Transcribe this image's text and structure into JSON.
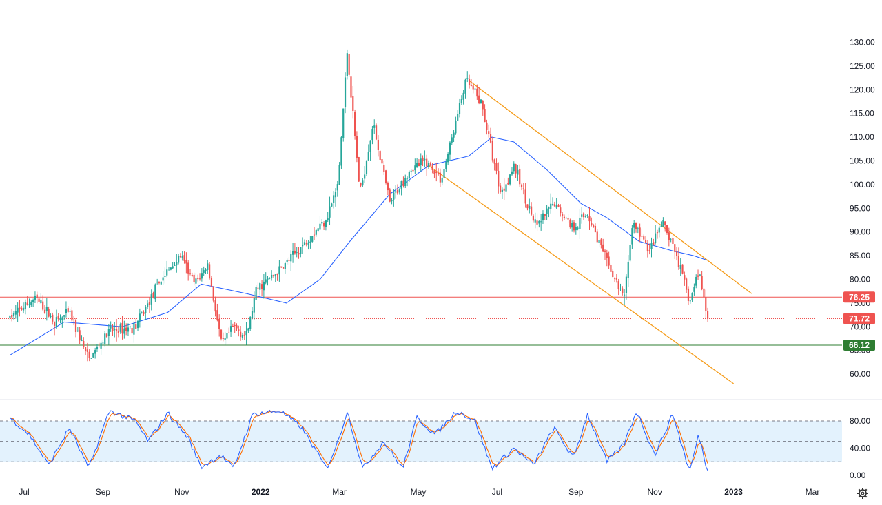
{
  "chart_data": [
    {
      "type": "candlestick",
      "title": "",
      "x_tick_labels": [
        "Jul",
        "Sep",
        "Nov",
        "2022",
        "Mar",
        "May",
        "Jul",
        "Sep",
        "Nov",
        "2023",
        "Mar"
      ],
      "y_tick_labels": [
        "130.00",
        "125.00",
        "120.00",
        "115.00",
        "110.00",
        "105.00",
        "100.00",
        "95.00",
        "90.00",
        "85.00",
        "80.00",
        "75.00",
        "70.00",
        "65.00",
        "60.00"
      ],
      "ylim": [
        57,
        132
      ],
      "grid": false,
      "colors": {
        "up": "#26a69a",
        "down": "#ef5350",
        "moving_average": "#2962ff",
        "channel": "#f59c1a",
        "resistance": "#ef5350",
        "support": "#2e7d32",
        "last_price": "#ef5350"
      },
      "price_path": [
        [
          "2021-06-20",
          72
        ],
        [
          "2021-07-10",
          76
        ],
        [
          "2021-07-25",
          71
        ],
        [
          "2021-08-05",
          73
        ],
        [
          "2021-08-20",
          63
        ],
        [
          "2021-09-05",
          69
        ],
        [
          "2021-09-25",
          70
        ],
        [
          "2021-10-15",
          80
        ],
        [
          "2021-10-30",
          85
        ],
        [
          "2021-11-10",
          79
        ],
        [
          "2021-11-20",
          83
        ],
        [
          "2021-12-01",
          66
        ],
        [
          "2021-12-10",
          70
        ],
        [
          "2021-12-20",
          68
        ],
        [
          "2021-12-28",
          78
        ],
        [
          "2022-01-15",
          82
        ],
        [
          "2022-02-01",
          87
        ],
        [
          "2022-02-20",
          93
        ],
        [
          "2022-03-01",
          100
        ],
        [
          "2022-03-08",
          128
        ],
        [
          "2022-03-18",
          98
        ],
        [
          "2022-03-28",
          113
        ],
        [
          "2022-04-10",
          96
        ],
        [
          "2022-04-25",
          103
        ],
        [
          "2022-05-08",
          105
        ],
        [
          "2022-05-20",
          101
        ],
        [
          "2022-06-08",
          122
        ],
        [
          "2022-06-20",
          117
        ],
        [
          "2022-07-05",
          98
        ],
        [
          "2022-07-15",
          104
        ],
        [
          "2022-08-01",
          91
        ],
        [
          "2022-08-15",
          96
        ],
        [
          "2022-08-30",
          91
        ],
        [
          "2022-09-10",
          94
        ],
        [
          "2022-09-26",
          83
        ],
        [
          "2022-10-08",
          76
        ],
        [
          "2022-10-15",
          92
        ],
        [
          "2022-10-28",
          86
        ],
        [
          "2022-11-07",
          92
        ],
        [
          "2022-11-18",
          85
        ],
        [
          "2022-11-28",
          75
        ],
        [
          "2022-12-05",
          82
        ],
        [
          "2022-12-12",
          71.72
        ]
      ],
      "moving_average_path": [
        [
          "2021-06-20",
          64
        ],
        [
          "2021-08-01",
          71
        ],
        [
          "2021-09-15",
          70
        ],
        [
          "2021-10-20",
          73
        ],
        [
          "2021-11-15",
          79
        ],
        [
          "2021-12-20",
          77
        ],
        [
          "2022-01-20",
          75
        ],
        [
          "2022-02-15",
          80
        ],
        [
          "2022-03-10",
          88
        ],
        [
          "2022-04-10",
          98
        ],
        [
          "2022-05-10",
          104
        ],
        [
          "2022-06-10",
          106
        ],
        [
          "2022-06-28",
          110
        ],
        [
          "2022-07-15",
          109
        ],
        [
          "2022-08-10",
          103
        ],
        [
          "2022-09-05",
          96
        ],
        [
          "2022-09-25",
          93
        ],
        [
          "2022-10-20",
          88
        ],
        [
          "2022-11-15",
          86
        ],
        [
          "2022-12-01",
          85
        ],
        [
          "2022-12-12",
          84
        ]
      ],
      "channel_upper": [
        [
          "2022-06-10",
          122
        ],
        [
          "2023-01-15",
          77
        ]
      ],
      "channel_lower": [
        [
          "2022-05-10",
          104
        ],
        [
          "2023-01-01",
          58
        ]
      ],
      "horizontal_levels": [
        {
          "value": 76.25,
          "label": "76.25",
          "style": "resistance"
        },
        {
          "value": 71.72,
          "label": "71.72",
          "style": "last_price"
        },
        {
          "value": 66.12,
          "label": "66.12",
          "style": "support"
        }
      ]
    },
    {
      "type": "line",
      "title": "",
      "y_tick_labels": [
        "80.00",
        "40.00",
        "0.00"
      ],
      "ylim": [
        0,
        100
      ],
      "band": [
        20,
        80
      ],
      "midline": 50,
      "colors": {
        "k_line": "#2962ff",
        "d_line": "#ff6d00",
        "band_fill": "#e3f2fd"
      },
      "oscillator_path": [
        [
          "2021-06-20",
          85
        ],
        [
          "2021-07-05",
          60
        ],
        [
          "2021-07-20",
          15
        ],
        [
          "2021-08-05",
          70
        ],
        [
          "2021-08-20",
          10
        ],
        [
          "2021-09-05",
          95
        ],
        [
          "2021-09-25",
          80
        ],
        [
          "2021-10-05",
          50
        ],
        [
          "2021-10-20",
          92
        ],
        [
          "2021-11-05",
          55
        ],
        [
          "2021-11-15",
          12
        ],
        [
          "2021-11-30",
          30
        ],
        [
          "2021-12-10",
          10
        ],
        [
          "2021-12-25",
          90
        ],
        [
          "2022-01-15",
          95
        ],
        [
          "2022-02-01",
          70
        ],
        [
          "2022-02-20",
          10
        ],
        [
          "2022-03-01",
          50
        ],
        [
          "2022-03-08",
          95
        ],
        [
          "2022-03-20",
          10
        ],
        [
          "2022-04-05",
          50
        ],
        [
          "2022-04-20",
          10
        ],
        [
          "2022-05-01",
          85
        ],
        [
          "2022-05-15",
          60
        ],
        [
          "2022-06-01",
          95
        ],
        [
          "2022-06-15",
          80
        ],
        [
          "2022-06-28",
          10
        ],
        [
          "2022-07-15",
          40
        ],
        [
          "2022-07-30",
          15
        ],
        [
          "2022-08-15",
          70
        ],
        [
          "2022-08-30",
          25
        ],
        [
          "2022-09-10",
          90
        ],
        [
          "2022-09-25",
          20
        ],
        [
          "2022-10-08",
          45
        ],
        [
          "2022-10-18",
          95
        ],
        [
          "2022-11-01",
          30
        ],
        [
          "2022-11-15",
          90
        ],
        [
          "2022-11-28",
          5
        ],
        [
          "2022-12-05",
          60
        ],
        [
          "2022-12-12",
          5
        ]
      ]
    }
  ]
}
